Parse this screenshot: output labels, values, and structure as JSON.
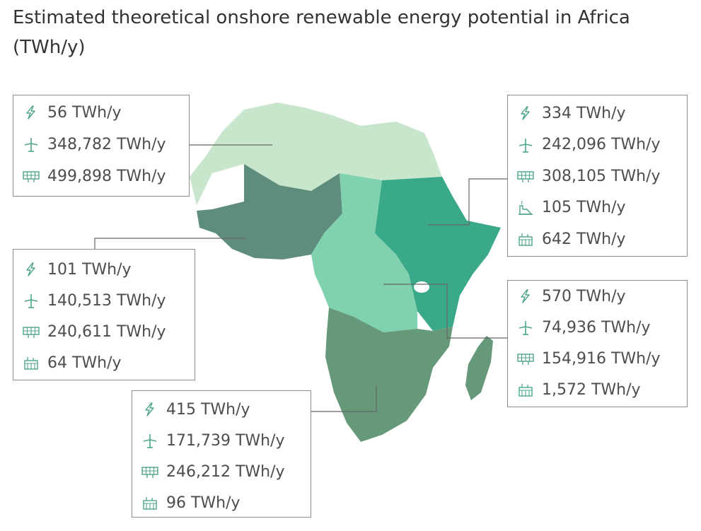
{
  "title": "Estimated theoretical onshore renewable energy potential in Africa (TWh/y)",
  "colors": {
    "north": "#c8e6cc",
    "west": "#5e8d7d",
    "central": "#7fd2ad",
    "east": "#3aa98a",
    "southern": "#65997a",
    "icon": "#4ea585",
    "border": "#8c8c8c",
    "leader": "#666666"
  },
  "icons": {
    "hydro": "lightning-icon",
    "wind": "wind-turbine-icon",
    "solar": "solar-panel-icon",
    "geothermal": "geothermal-icon",
    "bioenergy": "bioenergy-icon"
  },
  "regions": [
    {
      "name": "north-africa",
      "entries": [
        {
          "icon": "hydro",
          "value": "56 TWh/y"
        },
        {
          "icon": "wind",
          "value": "348,782 TWh/y"
        },
        {
          "icon": "solar",
          "value": "499,898 TWh/y"
        }
      ]
    },
    {
      "name": "west-africa",
      "entries": [
        {
          "icon": "hydro",
          "value": "101 TWh/y"
        },
        {
          "icon": "wind",
          "value": "140,513 TWh/y"
        },
        {
          "icon": "solar",
          "value": "240,611 TWh/y"
        },
        {
          "icon": "bioenergy",
          "value": "64 TWh/y"
        }
      ]
    },
    {
      "name": "southern-africa",
      "entries": [
        {
          "icon": "hydro",
          "value": "415 TWh/y"
        },
        {
          "icon": "wind",
          "value": "171,739 TWh/y"
        },
        {
          "icon": "solar",
          "value": "246,212 TWh/y"
        },
        {
          "icon": "bioenergy",
          "value": "96 TWh/y"
        }
      ]
    },
    {
      "name": "east-africa",
      "entries": [
        {
          "icon": "hydro",
          "value": "334 TWh/y"
        },
        {
          "icon": "wind",
          "value": "242,096 TWh/y"
        },
        {
          "icon": "solar",
          "value": "308,105 TWh/y"
        },
        {
          "icon": "geothermal",
          "value": "105 TWh/y"
        },
        {
          "icon": "bioenergy",
          "value": "642 TWh/y"
        }
      ]
    },
    {
      "name": "central-africa",
      "entries": [
        {
          "icon": "hydro",
          "value": "570 TWh/y"
        },
        {
          "icon": "wind",
          "value": "74,936 TWh/y"
        },
        {
          "icon": "solar",
          "value": "154,916 TWh/y"
        },
        {
          "icon": "bioenergy",
          "value": "1,572 TWh/y"
        }
      ]
    }
  ]
}
